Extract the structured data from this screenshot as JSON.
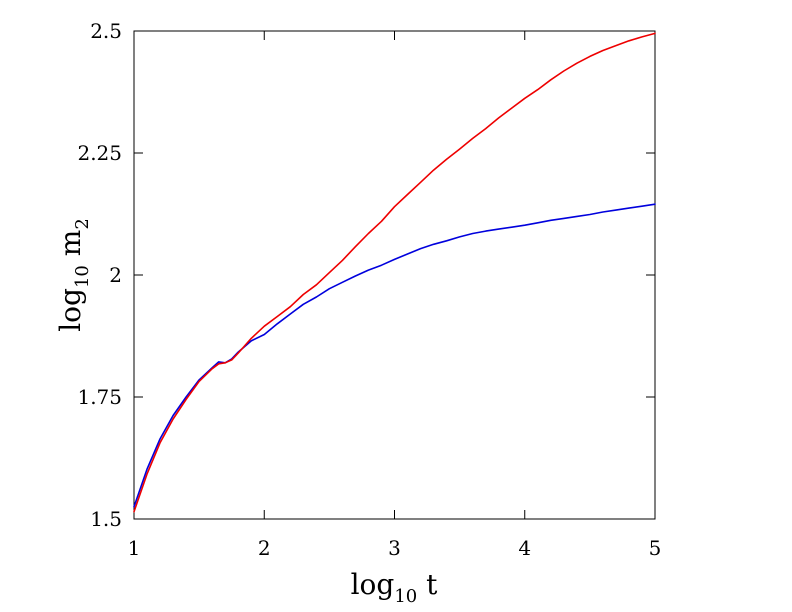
{
  "chart_data": {
    "type": "line",
    "title": "",
    "xlabel": {
      "base": "log",
      "sub": "10",
      "tail": " t"
    },
    "ylabel": {
      "base": "log",
      "sub": "10",
      "tail": " m",
      "tail_sub": "2"
    },
    "xlim": [
      1,
      5
    ],
    "ylim": [
      1.5,
      2.5
    ],
    "x_ticks": [
      1,
      2,
      3,
      4,
      5
    ],
    "x_tick_labels": [
      "1",
      "2",
      "3",
      "4",
      "5"
    ],
    "y_ticks": [
      1.5,
      1.75,
      2,
      2.25,
      2.5
    ],
    "y_tick_labels": [
      "1.5",
      "1.75",
      "2",
      "2.25",
      "2.5"
    ],
    "grid": false,
    "legend": "none",
    "series": [
      {
        "color": "#0000dd",
        "x": [
          1.0,
          1.1,
          1.2,
          1.3,
          1.4,
          1.5,
          1.6,
          1.65,
          1.7,
          1.75,
          1.8,
          1.9,
          2.0,
          2.1,
          2.2,
          2.3,
          2.4,
          2.5,
          2.6,
          2.7,
          2.8,
          2.9,
          3.0,
          3.1,
          3.2,
          3.3,
          3.4,
          3.5,
          3.6,
          3.7,
          3.8,
          3.9,
          4.0,
          4.1,
          4.2,
          4.3,
          4.4,
          4.5,
          4.6,
          4.7,
          4.8,
          4.9,
          5.0
        ],
        "y": [
          1.525,
          1.602,
          1.664,
          1.712,
          1.75,
          1.785,
          1.81,
          1.822,
          1.82,
          1.828,
          1.842,
          1.865,
          1.878,
          1.9,
          1.92,
          1.94,
          1.955,
          1.972,
          1.985,
          1.998,
          2.01,
          2.02,
          2.032,
          2.043,
          2.054,
          2.063,
          2.07,
          2.078,
          2.085,
          2.09,
          2.094,
          2.098,
          2.102,
          2.107,
          2.112,
          2.116,
          2.12,
          2.124,
          2.129,
          2.133,
          2.137,
          2.141,
          2.145
        ]
      },
      {
        "color": "#ee0000",
        "x": [
          1.0,
          1.1,
          1.2,
          1.3,
          1.4,
          1.5,
          1.6,
          1.65,
          1.7,
          1.75,
          1.8,
          1.9,
          2.0,
          2.1,
          2.2,
          2.3,
          2.4,
          2.5,
          2.6,
          2.7,
          2.8,
          2.9,
          3.0,
          3.1,
          3.2,
          3.3,
          3.4,
          3.5,
          3.6,
          3.7,
          3.8,
          3.9,
          4.0,
          4.1,
          4.2,
          4.3,
          4.4,
          4.5,
          4.6,
          4.7,
          4.8,
          4.9,
          5.0
        ],
        "y": [
          1.515,
          1.592,
          1.656,
          1.705,
          1.745,
          1.782,
          1.808,
          1.818,
          1.82,
          1.826,
          1.84,
          1.87,
          1.895,
          1.915,
          1.935,
          1.96,
          1.98,
          2.005,
          2.03,
          2.058,
          2.085,
          2.11,
          2.14,
          2.165,
          2.19,
          2.215,
          2.237,
          2.258,
          2.28,
          2.3,
          2.322,
          2.342,
          2.362,
          2.38,
          2.4,
          2.418,
          2.434,
          2.448,
          2.46,
          2.47,
          2.48,
          2.488,
          2.495
        ]
      }
    ]
  }
}
